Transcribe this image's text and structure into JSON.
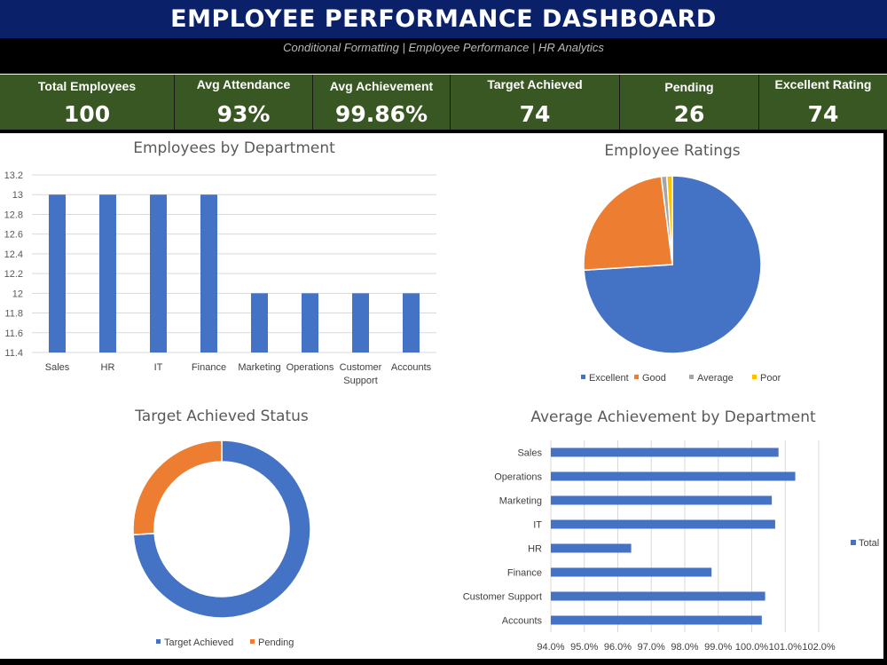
{
  "header": {
    "title": "EMPLOYEE PERFORMANCE DASHBOARD",
    "subtitle": "Conditional Formatting | Employee Performance | HR Analytics"
  },
  "kpis": [
    {
      "label": "Total Employees",
      "value": "100"
    },
    {
      "label": "Avg Attendance",
      "value": "93%"
    },
    {
      "label": "Avg Achievement",
      "value": "99.86%"
    },
    {
      "label": "Target Achieved",
      "value": "74"
    },
    {
      "label": "Pending",
      "value": "26"
    },
    {
      "label": "Excellent Rating",
      "value": "74"
    }
  ],
  "colors": {
    "header_bg": "#0a2069",
    "kpi_bg": "#385723",
    "blue": "#4472c4",
    "orange": "#ed7d31",
    "gray": "#a5a5a5",
    "yellow": "#ffc000"
  },
  "chart_data": [
    {
      "type": "bar",
      "title": "Employees by Department",
      "categories": [
        "Sales",
        "HR",
        "IT",
        "Finance",
        "Marketing",
        "Operations",
        "Customer Support",
        "Accounts"
      ],
      "values": [
        13,
        13,
        13,
        13,
        12,
        12,
        12,
        12
      ],
      "ylim": [
        11.4,
        13.2
      ],
      "yticks": [
        "11.4",
        "11.6",
        "11.8",
        "12",
        "12.2",
        "12.4",
        "12.6",
        "12.8",
        "13",
        "13.2"
      ],
      "grid": true
    },
    {
      "type": "pie",
      "title": "Employee Ratings",
      "labels": [
        "Excellent",
        "Good",
        "Average",
        "Poor"
      ],
      "values": [
        74,
        24,
        1,
        1
      ],
      "legend": "bottom"
    },
    {
      "type": "pie",
      "title": "Target Achieved Status",
      "donut": true,
      "labels": [
        "Target Achieved",
        "Pending"
      ],
      "values": [
        74,
        26
      ],
      "legend": "bottom"
    },
    {
      "type": "bar",
      "orientation": "horizontal",
      "title": "Average Achievement by Department",
      "categories": [
        "Sales",
        "Operations",
        "Marketing",
        "IT",
        "HR",
        "Finance",
        "Customer Support",
        "Accounts"
      ],
      "values": [
        100.8,
        101.3,
        100.6,
        100.7,
        96.4,
        98.8,
        100.4,
        100.3
      ],
      "series": [
        {
          "name": "Total"
        }
      ],
      "xlim": [
        94.0,
        102.0
      ],
      "xticks": [
        "94.0%",
        "95.0%",
        "96.0%",
        "97.0%",
        "98.0%",
        "99.0%",
        "100.0%",
        "101.0%",
        "102.0%"
      ],
      "legend": "right",
      "grid": true
    }
  ]
}
